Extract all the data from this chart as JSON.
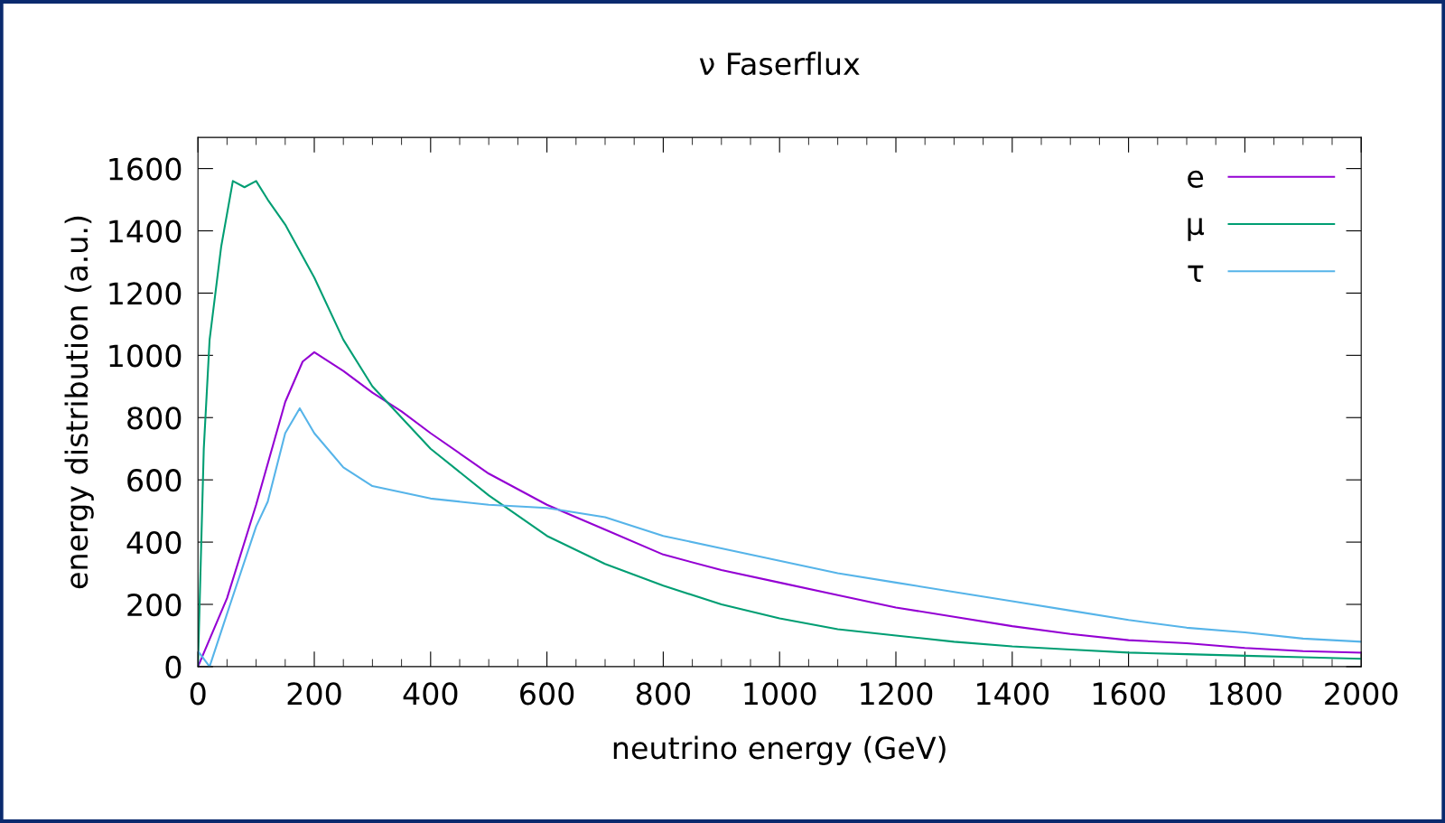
{
  "chart_data": {
    "type": "line",
    "title": "ν Faserflux",
    "xlabel": "neutrino energy (GeV)",
    "ylabel": "energy distribution (a.u.)",
    "xlim": [
      0,
      2000
    ],
    "xticks": [
      0,
      200,
      400,
      600,
      800,
      1000,
      1200,
      1400,
      1600,
      1800,
      2000
    ],
    "ylim": [
      0,
      1700
    ],
    "yticks": [
      0,
      200,
      400,
      600,
      800,
      1000,
      1200,
      1400,
      1600
    ],
    "grid": false,
    "legend": "top right",
    "marker": "none",
    "line_style": "solid",
    "series": [
      {
        "name": "e",
        "color": "#9400d3",
        "x": [
          0,
          50,
          100,
          150,
          180,
          200,
          250,
          300,
          350,
          400,
          500,
          600,
          700,
          800,
          900,
          1000,
          1100,
          1200,
          1300,
          1400,
          1500,
          1600,
          1700,
          1800,
          1900,
          2000
        ],
        "values": [
          0,
          220,
          520,
          850,
          980,
          1010,
          950,
          880,
          820,
          750,
          620,
          520,
          440,
          360,
          310,
          270,
          230,
          190,
          160,
          130,
          105,
          85,
          75,
          60,
          50,
          45
        ]
      },
      {
        "name": "μ",
        "color": "#009e73",
        "x": [
          0,
          10,
          20,
          40,
          60,
          80,
          100,
          120,
          150,
          200,
          250,
          300,
          400,
          500,
          600,
          700,
          800,
          900,
          1000,
          1100,
          1200,
          1300,
          1400,
          1500,
          1600,
          1700,
          1800,
          1900,
          2000
        ],
        "values": [
          0,
          700,
          1050,
          1350,
          1560,
          1540,
          1560,
          1500,
          1420,
          1250,
          1050,
          900,
          700,
          550,
          420,
          330,
          260,
          200,
          155,
          120,
          100,
          80,
          65,
          55,
          45,
          40,
          35,
          30,
          25
        ]
      },
      {
        "name": "τ",
        "color": "#56b4e9",
        "x": [
          0,
          20,
          50,
          100,
          120,
          150,
          175,
          200,
          250,
          300,
          400,
          500,
          600,
          700,
          800,
          900,
          1000,
          1100,
          1200,
          1300,
          1400,
          1500,
          1600,
          1700,
          1800,
          1900,
          2000
        ],
        "values": [
          50,
          0,
          170,
          450,
          530,
          750,
          830,
          750,
          640,
          580,
          540,
          520,
          510,
          480,
          420,
          380,
          340,
          300,
          270,
          240,
          210,
          180,
          150,
          125,
          110,
          90,
          80
        ]
      }
    ]
  }
}
